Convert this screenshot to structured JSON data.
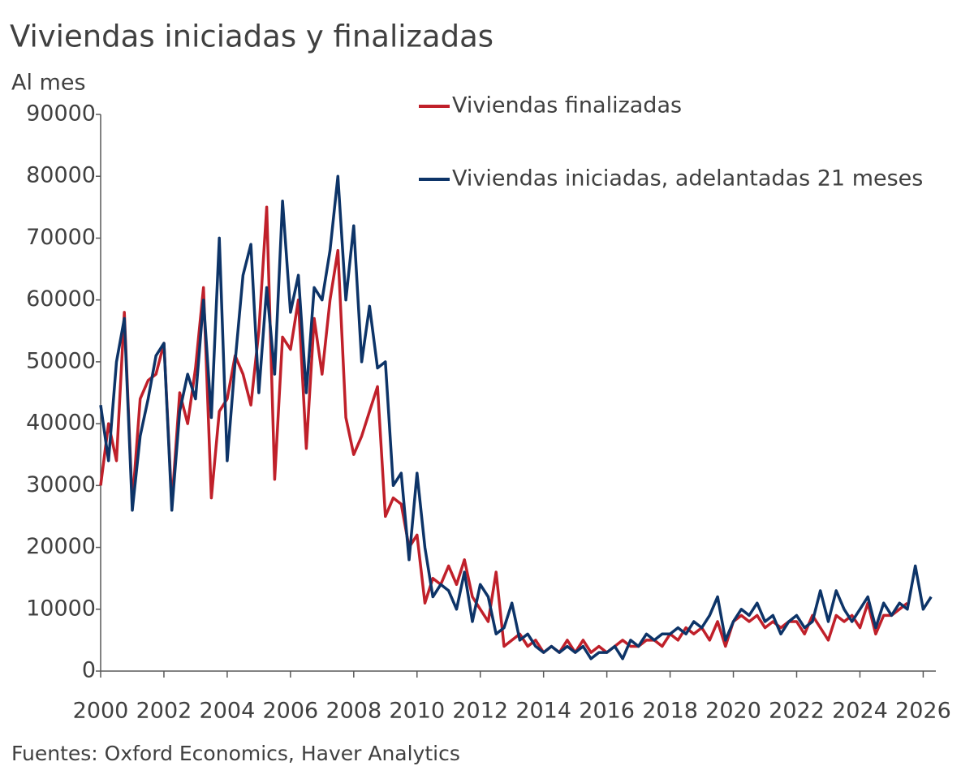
{
  "chart_data": {
    "type": "line",
    "title": "Viviendas iniciadas y finalizadas",
    "y_label": "Al mes",
    "source": "Fuentes: Oxford Economics, Haver Analytics",
    "x": [
      2000,
      2000.25,
      2000.5,
      2000.75,
      2001,
      2001.25,
      2001.5,
      2001.75,
      2002,
      2002.25,
      2002.5,
      2002.75,
      2003,
      2003.25,
      2003.5,
      2003.75,
      2004,
      2004.25,
      2004.5,
      2004.75,
      2005,
      2005.25,
      2005.5,
      2005.75,
      2006,
      2006.25,
      2006.5,
      2006.75,
      2007,
      2007.25,
      2007.5,
      2007.75,
      2008,
      2008.25,
      2008.5,
      2008.75,
      2009,
      2009.25,
      2009.5,
      2009.75,
      2010,
      2010.25,
      2010.5,
      2010.75,
      2011,
      2011.25,
      2011.5,
      2011.75,
      2012,
      2012.25,
      2012.5,
      2012.75,
      2013,
      2013.25,
      2013.5,
      2013.75,
      2014,
      2014.25,
      2014.5,
      2014.75,
      2015,
      2015.25,
      2015.5,
      2015.75,
      2016,
      2016.25,
      2016.5,
      2016.75,
      2017,
      2017.25,
      2017.5,
      2017.75,
      2018,
      2018.25,
      2018.5,
      2018.75,
      2019,
      2019.25,
      2019.5,
      2019.75,
      2020,
      2020.25,
      2020.5,
      2020.75,
      2021,
      2021.25,
      2021.5,
      2021.75,
      2022,
      2022.25,
      2022.5,
      2022.75,
      2023,
      2023.25,
      2023.5,
      2023.75,
      2024,
      2024.25,
      2024.5,
      2024.75,
      2025,
      2025.25,
      2025.5,
      2025.75,
      2026,
      2026.25
    ],
    "series": [
      {
        "name": "Viviendas finalizadas",
        "color": "#c0202a",
        "values": [
          30000,
          40000,
          34000,
          58000,
          27000,
          44000,
          47000,
          48000,
          53000,
          27000,
          45000,
          40000,
          49000,
          62000,
          28000,
          42000,
          44000,
          51000,
          48000,
          43000,
          55000,
          75000,
          31000,
          54000,
          52000,
          60000,
          36000,
          57000,
          48000,
          60000,
          68000,
          41000,
          35000,
          38000,
          42000,
          46000,
          25000,
          28000,
          27000,
          20000,
          22000,
          11000,
          15000,
          14000,
          17000,
          14000,
          18000,
          12000,
          10000,
          8000,
          16000,
          4000,
          5000,
          6000,
          4000,
          5000,
          3000,
          4000,
          3000,
          5000,
          3000,
          5000,
          3000,
          4000,
          3000,
          4000,
          5000,
          4000,
          4000,
          5000,
          5000,
          4000,
          6000,
          5000,
          7000,
          6000,
          7000,
          5000,
          8000,
          4000,
          8000,
          9000,
          8000,
          9000,
          7000,
          8000,
          7000,
          8000,
          8000,
          6000,
          9000,
          7000,
          5000,
          9000,
          8000,
          9000,
          7000,
          11000,
          6000,
          9000,
          9000,
          10000,
          11000,
          null,
          null,
          null
        ]
      },
      {
        "name": "Viviendas iniciadas, adelantadas 21 meses",
        "color": "#0d3468",
        "values": [
          43000,
          34000,
          50000,
          57000,
          26000,
          38000,
          44000,
          51000,
          53000,
          26000,
          42000,
          48000,
          44000,
          60000,
          41000,
          70000,
          34000,
          50000,
          64000,
          69000,
          45000,
          62000,
          48000,
          76000,
          58000,
          64000,
          45000,
          62000,
          60000,
          68000,
          80000,
          60000,
          72000,
          50000,
          59000,
          49000,
          50000,
          30000,
          32000,
          18000,
          32000,
          20000,
          12000,
          14000,
          13000,
          10000,
          16000,
          8000,
          14000,
          12000,
          6000,
          7000,
          11000,
          5000,
          6000,
          4000,
          3000,
          4000,
          3000,
          4000,
          3000,
          4000,
          2000,
          3000,
          3000,
          4000,
          2000,
          5000,
          4000,
          6000,
          5000,
          6000,
          6000,
          7000,
          6000,
          8000,
          7000,
          9000,
          12000,
          5000,
          8000,
          10000,
          9000,
          11000,
          8000,
          9000,
          6000,
          8000,
          9000,
          7000,
          8000,
          13000,
          8000,
          13000,
          10000,
          8000,
          10000,
          12000,
          7000,
          11000,
          9000,
          11000,
          10000,
          17000,
          10000,
          12000
        ]
      }
    ],
    "xlim": [
      2000,
      2026.4
    ],
    "xticks": [
      2000,
      2002,
      2004,
      2006,
      2008,
      2010,
      2012,
      2014,
      2016,
      2018,
      2020,
      2022,
      2024,
      2026
    ],
    "ylim": [
      0,
      90000
    ],
    "yticks": [
      0,
      10000,
      20000,
      30000,
      40000,
      50000,
      60000,
      70000,
      80000,
      90000
    ],
    "grid": false,
    "legend": "top-right"
  }
}
